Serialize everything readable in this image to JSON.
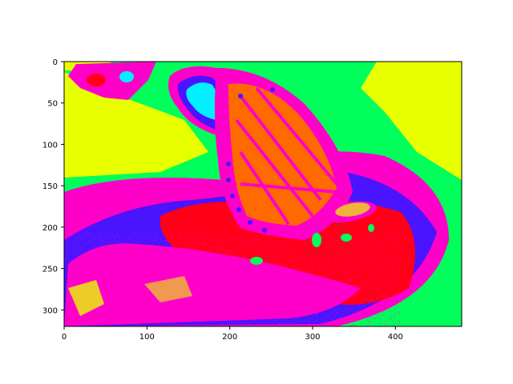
{
  "chart_data": {
    "type": "heatmap",
    "title": "",
    "xlabel": "",
    "ylabel": "",
    "xlim": [
      0,
      480
    ],
    "ylim": [
      320,
      0
    ],
    "x_ticks": [
      0,
      100,
      200,
      300,
      400
    ],
    "y_ticks": [
      0,
      50,
      100,
      150,
      200,
      250,
      300
    ],
    "image_content": "false-color (hsv colormap) image of a butterfly on a flower",
    "colormap": [
      "#ff0018",
      "#ff00c8",
      "#e8ff00",
      "#00ff5a",
      "#00f0ff",
      "#4a14ff",
      "#ff6a00"
    ],
    "grid": false,
    "legend": "none"
  }
}
